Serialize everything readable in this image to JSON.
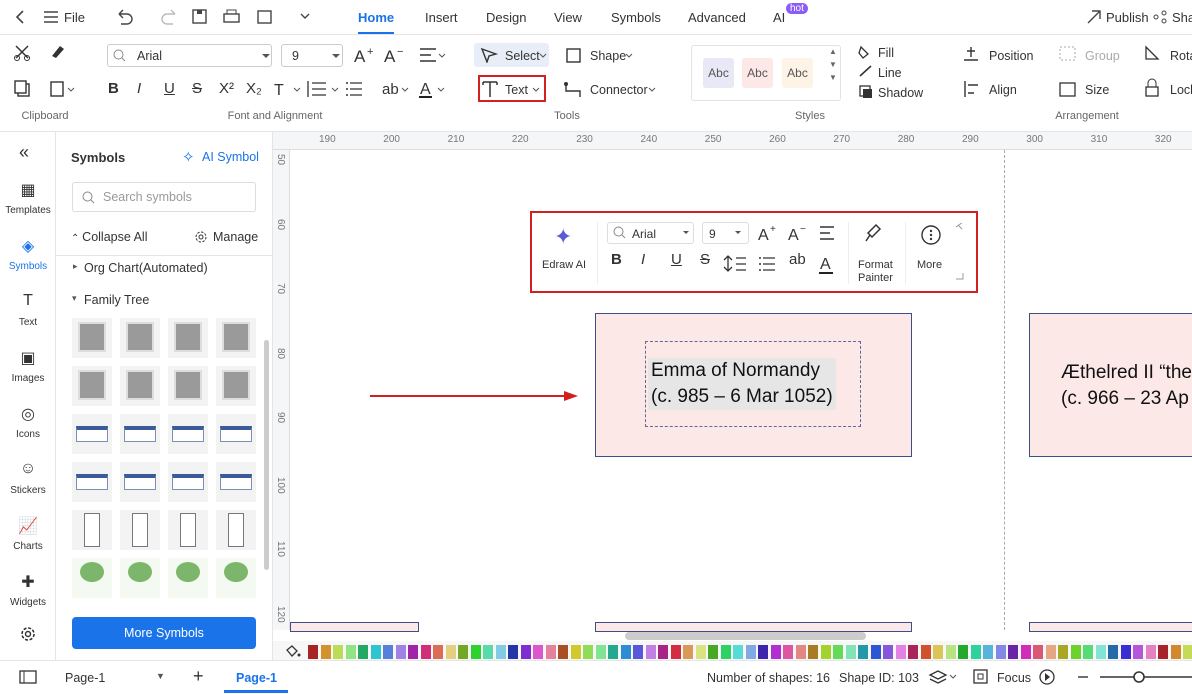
{
  "menu": {
    "file": "File",
    "tabs": [
      "Home",
      "Insert",
      "Design",
      "View",
      "Symbols",
      "Advanced",
      "AI"
    ],
    "hot": "hot",
    "publish": "Publish",
    "share": "Sha"
  },
  "ribbon": {
    "font": "Arial",
    "size": "9",
    "format_glyphs": [
      "B",
      "I",
      "U",
      "S",
      "X²",
      "X₂"
    ],
    "select": "Select",
    "shape": "Shape",
    "text": "Text",
    "connector": "Connector",
    "styles": [
      "Abc",
      "Abc",
      "Abc"
    ],
    "fill": "Fill",
    "line": "Line",
    "shadow": "Shadow",
    "position": "Position",
    "group": "Group",
    "rotate": "Rota",
    "align": "Align",
    "size_btn": "Size",
    "lock": "Lock",
    "groups": [
      "Clipboard",
      "Font and Alignment",
      "Tools",
      "Styles",
      "Arrangement"
    ]
  },
  "sidebar": {
    "items": [
      "Templates",
      "Symbols",
      "Text",
      "Images",
      "Icons",
      "Stickers",
      "Charts",
      "Widgets"
    ]
  },
  "symbols_panel": {
    "title": "Symbols",
    "ai_symbol": "AI Symbol",
    "search": "Search symbols",
    "collapse": "Collapse All",
    "manage": "Manage",
    "categories": [
      "Org Chart(Automated)",
      "Family Tree"
    ],
    "more": "More Symbols"
  },
  "ruler": {
    "top": [
      190,
      200,
      210,
      220,
      230,
      240,
      250,
      260,
      270,
      280,
      290,
      300,
      310,
      320
    ],
    "left": [
      50,
      60,
      70,
      80,
      90,
      100,
      110,
      120
    ]
  },
  "floating_toolbar": {
    "edraw_ai": "Edraw AI",
    "font": "Arial",
    "size": "9",
    "glyphs": [
      "B",
      "I",
      "U",
      "S",
      "ab"
    ],
    "format_painter": [
      "Format",
      "Painter"
    ],
    "more": "More"
  },
  "canvas": {
    "shapes": [
      {
        "lines": [
          "Emma of Normandy",
          "(c. 985 – 6 Mar 1052)"
        ]
      },
      {
        "lines": [
          "Æthelred II “the",
          "(c. 966 – 23 Ap"
        ]
      }
    ]
  },
  "status": {
    "page_tab": "Page-1",
    "active_page": "Page-1",
    "shapes_count": "Number of shapes: 16",
    "shape_id": "Shape ID: 103",
    "focus": "Focus"
  }
}
